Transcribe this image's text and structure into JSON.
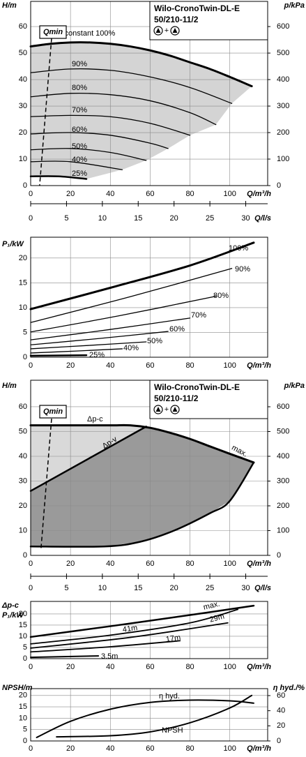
{
  "chart_data": [
    {
      "type": "line",
      "title": "Wilo-CronoTwin-DL-E",
      "subtitle": "50/210-11/2",
      "icon_text": "+",
      "ylabel": "H/m",
      "y2label": "p/kPa",
      "xlabel": "Q/m³/h",
      "x2label": "Q/l/s",
      "xlim": [
        0,
        119
      ],
      "xticks": [
        0,
        20,
        40,
        60,
        80,
        100
      ],
      "ylim": [
        0,
        69.5
      ],
      "yticks": [
        0,
        10,
        20,
        30,
        40,
        50,
        60
      ],
      "y2lim": [
        0,
        695
      ],
      "y2ticks": [
        0,
        100,
        200,
        300,
        400,
        500,
        600
      ],
      "x2lim": [
        0,
        33.06
      ],
      "x2ticks": [
        0,
        5,
        10,
        15,
        20,
        25,
        30
      ],
      "grid": true,
      "fill": "#d4d4d4",
      "qmin": {
        "label": "Qmin",
        "x": [
          10.5,
          4.5
        ],
        "values": [
          55.6,
          0
        ]
      },
      "series": [
        {
          "name": "n=constant 100%",
          "color": "#000000",
          "x": [
            0,
            10,
            20,
            30,
            40,
            50,
            60,
            70,
            80,
            90,
            100,
            111
          ],
          "values": [
            52.5,
            53.5,
            54,
            54,
            53.5,
            52.5,
            51,
            49,
            46.5,
            44,
            41,
            37.5
          ]
        },
        {
          "name": "90%",
          "color": "#000000",
          "x": [
            0,
            20,
            40,
            60,
            80,
            101
          ],
          "values": [
            42.6,
            44,
            43.5,
            41,
            37,
            31
          ]
        },
        {
          "name": "80%",
          "color": "#000000",
          "x": [
            0,
            20,
            40,
            60,
            80,
            93
          ],
          "values": [
            33.5,
            34.8,
            34.3,
            32,
            27.5,
            23
          ]
        },
        {
          "name": "70%",
          "color": "#000000",
          "x": [
            0,
            20,
            40,
            60,
            80
          ],
          "values": [
            26,
            26.5,
            26,
            23.5,
            19
          ]
        },
        {
          "name": "60%",
          "color": "#000000",
          "x": [
            0,
            20,
            40,
            60,
            69
          ],
          "values": [
            19.5,
            20,
            19,
            16,
            14
          ]
        },
        {
          "name": "50%",
          "color": "#000000",
          "x": [
            0,
            20,
            40,
            58
          ],
          "values": [
            13.5,
            14,
            12.5,
            9.5
          ]
        },
        {
          "name": "40%",
          "color": "#000000",
          "x": [
            0,
            20,
            46
          ],
          "values": [
            9,
            9,
            6
          ]
        },
        {
          "name": "25%",
          "color": "#000000",
          "x": [
            0,
            14,
            28
          ],
          "values": [
            3.5,
            3.5,
            2.5
          ]
        }
      ]
    },
    {
      "type": "line",
      "ylabel": "P₁/kW",
      "xlabel": "Q/m³/h",
      "xlim": [
        0,
        119
      ],
      "xticks": [
        0,
        20,
        40,
        60,
        80,
        100
      ],
      "ylim": [
        0,
        24.2
      ],
      "yticks": [
        0,
        5,
        10,
        15,
        20
      ],
      "grid": true,
      "series": [
        {
          "name": "100%",
          "color": "#000000",
          "x": [
            0,
            40,
            80,
            112
          ],
          "values": [
            9.7,
            14,
            18.5,
            23.1
          ]
        },
        {
          "name": "90%",
          "color": "#000000",
          "x": [
            0,
            50,
            101
          ],
          "values": [
            7,
            12.2,
            17.9
          ]
        },
        {
          "name": "80%",
          "color": "#000000",
          "x": [
            0,
            45,
            93
          ],
          "values": [
            5.1,
            8.4,
            12.3
          ]
        },
        {
          "name": "70%",
          "color": "#000000",
          "x": [
            0,
            40,
            80
          ],
          "values": [
            3.5,
            5.6,
            7.9
          ]
        },
        {
          "name": "60%",
          "color": "#000000",
          "x": [
            0,
            35,
            69
          ],
          "values": [
            2.5,
            3.8,
            5.2
          ]
        },
        {
          "name": "50%",
          "color": "#000000",
          "x": [
            0,
            30,
            58
          ],
          "values": [
            1.7,
            2.4,
            3.1
          ]
        },
        {
          "name": "40%",
          "color": "#000000",
          "x": [
            0,
            23,
            46
          ],
          "values": [
            0.85,
            1.25,
            1.7
          ]
        },
        {
          "name": "25%",
          "color": "#000000",
          "x": [
            0,
            28
          ],
          "values": [
            0.3,
            0.4
          ]
        }
      ]
    },
    {
      "type": "line",
      "title": "Wilo-CronoTwin-DL-E",
      "subtitle": "50/210-11/2",
      "icon_text": "+",
      "ylabel": "H/m",
      "y2label": "p/kPa",
      "xlabel": "Q/m³/h",
      "x2label": "Q/l/s",
      "xlim": [
        0,
        119
      ],
      "xticks": [
        0,
        20,
        40,
        60,
        80,
        100
      ],
      "ylim": [
        0,
        70.7
      ],
      "yticks": [
        0,
        10,
        20,
        30,
        40,
        50,
        60
      ],
      "y2lim": [
        0,
        707
      ],
      "y2ticks": [
        0,
        100,
        200,
        300,
        400,
        500,
        600
      ],
      "x2lim": [
        0,
        33.06
      ],
      "x2ticks": [
        0,
        5,
        10,
        15,
        20,
        25,
        30
      ],
      "grid": true,
      "fill": "#d9d9d9",
      "fill_dark": "#9a9a9a",
      "qmin": {
        "label": "Qmin",
        "x": [
          10.5,
          5.2
        ],
        "values": [
          55.2,
          2.8
        ]
      },
      "series": [
        {
          "name": "Δp-c",
          "color": "#000000",
          "x": [
            0,
            20,
            40,
            50,
            60,
            70,
            80,
            90,
            100,
            112
          ],
          "values": [
            52.5,
            52.5,
            52.5,
            52.5,
            51.5,
            49.5,
            47,
            44,
            41,
            37.5
          ]
        },
        {
          "name": "Δp-v",
          "color": "#000000",
          "x": [
            0,
            58
          ],
          "values": [
            26,
            52
          ]
        },
        {
          "name": "max.",
          "color": "#000000",
          "x": [
            0,
            37,
            55,
            72,
            90,
            100,
            112
          ],
          "values": [
            3.6,
            3.6,
            5.5,
            10,
            17,
            22,
            37.5
          ]
        }
      ]
    },
    {
      "type": "line",
      "ylabel": "P₁/kW",
      "mode_label": "Δp-c",
      "xlabel": "Q/m³/h",
      "xlim": [
        0,
        119
      ],
      "xticks": [
        0,
        20,
        40,
        60,
        80,
        100
      ],
      "ylim": [
        0,
        25.6
      ],
      "yticks": [
        0,
        5,
        10,
        15,
        20
      ],
      "grid": true,
      "series": [
        {
          "name": "max.",
          "color": "#000000",
          "x": [
            0,
            40,
            80,
            112
          ],
          "values": [
            9.7,
            14.5,
            19.5,
            23.7
          ]
        },
        {
          "name": "41m",
          "color": "#000000",
          "x": [
            0,
            40,
            80,
            104
          ],
          "values": [
            6.6,
            10.5,
            16,
            22
          ]
        },
        {
          "name": "29m",
          "color": "#000000",
          "x": [
            0,
            50,
            99
          ],
          "values": [
            4.7,
            9.5,
            16
          ]
        },
        {
          "name": "17m",
          "color": "#000000",
          "x": [
            0,
            40,
            75
          ],
          "values": [
            3,
            5.3,
            8
          ]
        },
        {
          "name": "3.5m",
          "color": "#000000",
          "x": [
            0,
            34
          ],
          "values": [
            0.6,
            1.2
          ]
        }
      ]
    },
    {
      "type": "line",
      "ylabel": "NPSH/m",
      "y2label": "η hyd./%",
      "xlabel": "Q/m³/h",
      "xlim": [
        0,
        119
      ],
      "xticks": [
        0,
        20,
        40,
        60,
        80,
        100
      ],
      "ylim": [
        0,
        23
      ],
      "yticks": [
        0,
        5,
        10,
        15,
        20
      ],
      "y2lim": [
        0,
        69.2
      ],
      "y2ticks": [
        0,
        20,
        40,
        60
      ],
      "grid": true,
      "series": [
        {
          "name": "η hyd.",
          "color": "#000000",
          "axis": "y2",
          "x": [
            3,
            20,
            40,
            60,
            80,
            100,
            112
          ],
          "values": [
            4.6,
            26,
            42,
            51,
            54,
            53,
            50
          ]
        },
        {
          "name": "NPSH",
          "color": "#000000",
          "x": [
            13,
            40,
            60,
            80,
            100,
            111
          ],
          "values": [
            1.8,
            2.3,
            4,
            8,
            14.5,
            20
          ]
        }
      ]
    }
  ]
}
